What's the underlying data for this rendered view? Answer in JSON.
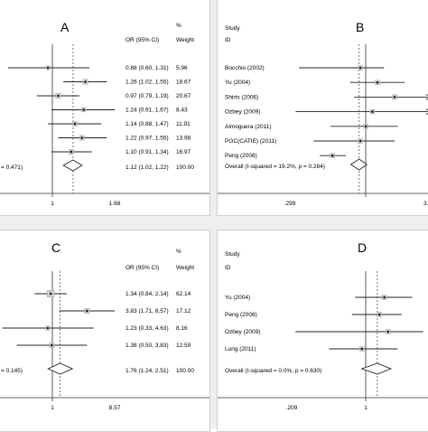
{
  "chart_data": [
    {
      "type": "forest",
      "letter": "A",
      "col_or": "OR (95% CI)",
      "col_pct": "%",
      "col_weight": "Weight",
      "x_ticks": [
        "1",
        "1.68"
      ],
      "null_value": 1,
      "pooled_label_fragment": "= 0.471)",
      "rows": [
        {
          "est": 0.88,
          "lo": 0.6,
          "hi": 1.31,
          "ci_text": "0.88 (0.60, 1.31)",
          "weight": "5.96"
        },
        {
          "est": 1.26,
          "lo": 1.02,
          "hi": 1.55,
          "ci_text": "1.26 (1.02, 1.55)",
          "weight": "18.67"
        },
        {
          "est": 0.97,
          "lo": 0.79,
          "hi": 1.19,
          "ci_text": "0.97 (0.79, 1.19)",
          "weight": "20.67"
        },
        {
          "est": 1.24,
          "lo": 0.91,
          "hi": 1.67,
          "ci_text": "1.24 (0.91, 1.67)",
          "weight": "8.43"
        },
        {
          "est": 1.14,
          "lo": 0.88,
          "hi": 1.47,
          "ci_text": "1.14 (0.88, 1.47)",
          "weight": "11.91"
        },
        {
          "est": 1.22,
          "lo": 0.97,
          "hi": 1.55,
          "ci_text": "1.22 (0.97, 1.55)",
          "weight": "13.98"
        },
        {
          "est": 1.1,
          "lo": 0.91,
          "hi": 1.34,
          "ci_text": "1.10 (0.91, 1.34)",
          "weight": "16.97"
        }
      ],
      "overall": {
        "est": 1.12,
        "lo": 1.02,
        "hi": 1.22,
        "ci_text": "1.12 (1.02, 1.22)",
        "weight": "100.00"
      }
    },
    {
      "type": "forest",
      "letter": "B",
      "col_study": "Study",
      "col_id": "ID",
      "x_ticks": [
        ".299",
        "1",
        "3."
      ],
      "null_value": 1,
      "rows": [
        {
          "label": "Bocchio (2002)",
          "est": 1.0,
          "lo": 0.35,
          "hi": 1.5
        },
        {
          "label": "Yu (2004)",
          "est": 1.34,
          "lo": 0.84,
          "hi": 2.14
        },
        {
          "label": "Shirts (2006)",
          "est": 1.8,
          "lo": 0.9,
          "hi": 3.6
        },
        {
          "label": "Ozbey (2009)",
          "est": 1.23,
          "lo": 0.33,
          "hi": 4.63
        },
        {
          "label": "Almoguera (2011)",
          "est": 1.1,
          "lo": 0.6,
          "hi": 1.9
        },
        {
          "label": "PGC(CATIE) (2011)",
          "est": 1.0,
          "lo": 0.45,
          "hi": 1.8
        },
        {
          "label": "Peng (2008)",
          "est": 0.62,
          "lo": 0.5,
          "hi": 0.78
        }
      ],
      "overall_label": "Overall  (I-squared = 19.2%, p = 0.284)",
      "overall": {
        "est": 0.98,
        "lo": 0.85,
        "hi": 1.12
      }
    },
    {
      "type": "forest",
      "letter": "C",
      "col_or": "OR (95% CI)",
      "col_pct": "%",
      "col_weight": "Weight",
      "x_ticks": [
        "1",
        "8.57"
      ],
      "null_value": 1,
      "pooled_label_fragment": "= 0.145)",
      "rows": [
        {
          "est": 1.34,
          "lo": 0.84,
          "hi": 2.14,
          "ci_text": "1.34 (0.84, 2.14)",
          "weight": "62.14"
        },
        {
          "est": 3.83,
          "lo": 1.71,
          "hi": 8.57,
          "ci_text": "3.83 (1.71, 8.57)",
          "weight": "17.12"
        },
        {
          "est": 1.23,
          "lo": 0.33,
          "hi": 4.63,
          "ci_text": "1.23 (0.33, 4.63)",
          "weight": "8.16"
        },
        {
          "est": 1.38,
          "lo": 0.5,
          "hi": 3.83,
          "ci_text": "1.38 (0.50, 3.83)",
          "weight": "12.59"
        }
      ],
      "overall": {
        "est": 1.76,
        "lo": 1.24,
        "hi": 2.51,
        "ci_text": "1.76 (1.24, 2.51)",
        "weight": "100.00"
      }
    },
    {
      "type": "forest",
      "letter": "D",
      "col_study": "Study",
      "col_id": "ID",
      "x_ticks": [
        ".209",
        "1"
      ],
      "null_value": 1,
      "rows": [
        {
          "label": "Yu (2004)",
          "est": 0.75,
          "lo": 0.5,
          "hi": 1.1
        },
        {
          "label": "Peng (2008)",
          "est": 0.7,
          "lo": 0.48,
          "hi": 0.95
        },
        {
          "label": "Ozbey (2009)",
          "est": 0.79,
          "lo": 0.22,
          "hi": 1.28
        },
        {
          "label": "Lung (2011)",
          "est": 0.55,
          "lo": 0.35,
          "hi": 0.9
        }
      ],
      "overall_label": "Overall  (I-squared = 0.0%, p = 0.630)",
      "overall": {
        "est": 0.68,
        "lo": 0.55,
        "hi": 0.82
      }
    }
  ]
}
